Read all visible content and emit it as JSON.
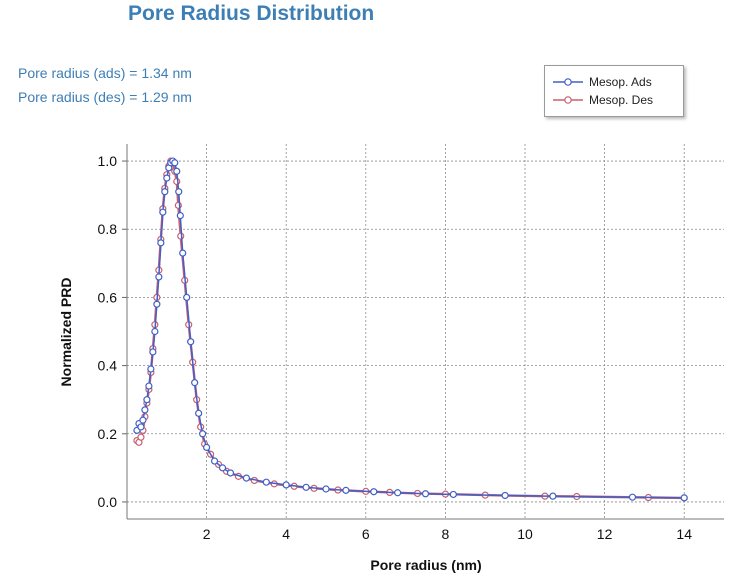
{
  "chart_data": {
    "type": "line",
    "title": "Pore Radius Distribution",
    "annotations": [
      "Pore radius (ads) = 1.34 nm",
      "Pore radius (des) = 1.29 nm"
    ],
    "xlabel": "Pore radius (nm)",
    "ylabel": "Normalized PRD",
    "xlim": [
      0,
      15
    ],
    "ylim": [
      -0.05,
      1.05
    ],
    "xticks": [
      2,
      4,
      6,
      8,
      10,
      12,
      14
    ],
    "yticks": [
      0.0,
      0.2,
      0.4,
      0.6,
      0.8,
      1.0
    ],
    "ytick_labels": [
      "0.0",
      "0.2",
      "0.4",
      "0.6",
      "0.8",
      "1.0"
    ],
    "grid": true,
    "legend_position": "top-right",
    "series": [
      {
        "name": "Mesop. Ads",
        "color": "#4060c8",
        "x": [
          0.25,
          0.3,
          0.35,
          0.4,
          0.45,
          0.5,
          0.55,
          0.6,
          0.65,
          0.7,
          0.75,
          0.8,
          0.85,
          0.9,
          0.95,
          1.0,
          1.05,
          1.1,
          1.15,
          1.2,
          1.25,
          1.3,
          1.34,
          1.4,
          1.5,
          1.6,
          1.7,
          1.8,
          1.9,
          2.0,
          2.2,
          2.4,
          2.6,
          3.0,
          3.5,
          4.0,
          4.5,
          5.0,
          5.5,
          6.2,
          6.8,
          7.5,
          8.2,
          9.5,
          10.7,
          12.7,
          14.0
        ],
        "y": [
          0.21,
          0.23,
          0.22,
          0.24,
          0.27,
          0.3,
          0.34,
          0.39,
          0.44,
          0.5,
          0.58,
          0.66,
          0.76,
          0.85,
          0.91,
          0.95,
          0.98,
          0.995,
          1.0,
          0.995,
          0.97,
          0.91,
          0.84,
          0.73,
          0.6,
          0.47,
          0.35,
          0.26,
          0.2,
          0.16,
          0.12,
          0.1,
          0.085,
          0.07,
          0.058,
          0.05,
          0.043,
          0.038,
          0.034,
          0.03,
          0.027,
          0.024,
          0.022,
          0.019,
          0.017,
          0.014,
          0.012
        ]
      },
      {
        "name": "Mesop. Des",
        "color": "#c86070",
        "x": [
          0.25,
          0.3,
          0.35,
          0.4,
          0.45,
          0.5,
          0.55,
          0.6,
          0.65,
          0.7,
          0.75,
          0.8,
          0.85,
          0.9,
          0.95,
          1.0,
          1.05,
          1.1,
          1.15,
          1.2,
          1.25,
          1.29,
          1.35,
          1.45,
          1.55,
          1.65,
          1.75,
          1.85,
          1.95,
          2.1,
          2.3,
          2.5,
          2.8,
          3.2,
          3.7,
          4.2,
          4.7,
          5.3,
          6.0,
          6.6,
          7.3,
          8.0,
          9.0,
          10.5,
          11.3,
          13.1,
          14.0
        ],
        "y": [
          0.18,
          0.175,
          0.19,
          0.21,
          0.25,
          0.29,
          0.33,
          0.38,
          0.45,
          0.52,
          0.6,
          0.68,
          0.77,
          0.86,
          0.92,
          0.96,
          0.985,
          1.0,
          0.995,
          0.97,
          0.94,
          0.87,
          0.78,
          0.65,
          0.52,
          0.41,
          0.3,
          0.22,
          0.17,
          0.14,
          0.11,
          0.09,
          0.075,
          0.063,
          0.053,
          0.046,
          0.04,
          0.035,
          0.031,
          0.028,
          0.025,
          0.023,
          0.02,
          0.017,
          0.016,
          0.013,
          0.012
        ]
      }
    ]
  }
}
